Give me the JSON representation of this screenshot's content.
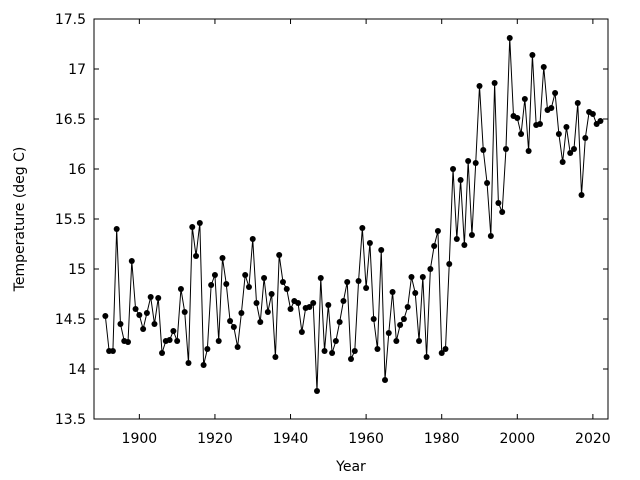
{
  "chart_data": {
    "type": "line",
    "title": "",
    "xlabel": "Year",
    "ylabel": "Temperature (deg C)",
    "xlim": [
      1888,
      2024
    ],
    "ylim": [
      13.5,
      17.5
    ],
    "grid": false,
    "legend": "none",
    "marker": "circle",
    "color": "#000000",
    "xticks": [
      1900,
      1920,
      1940,
      1960,
      1980,
      2000,
      2020
    ],
    "xtick_labels": [
      "1900",
      "1920",
      "1940",
      "1960",
      "1980",
      "2000",
      "2020"
    ],
    "yticks": [
      13.5,
      14,
      14.5,
      15,
      15.5,
      16,
      16.5,
      17,
      17.5
    ],
    "ytick_labels": [
      "13.5",
      "14",
      "14.5",
      "15",
      "15.5",
      "16",
      "16.5",
      "17",
      "17.5"
    ],
    "x": [
      1891,
      1892,
      1893,
      1894,
      1895,
      1896,
      1897,
      1898,
      1899,
      1900,
      1901,
      1902,
      1903,
      1904,
      1905,
      1906,
      1907,
      1908,
      1909,
      1910,
      1911,
      1912,
      1913,
      1914,
      1915,
      1916,
      1917,
      1918,
      1919,
      1920,
      1921,
      1922,
      1923,
      1924,
      1925,
      1926,
      1927,
      1928,
      1929,
      1930,
      1931,
      1932,
      1933,
      1934,
      1935,
      1936,
      1937,
      1938,
      1939,
      1940,
      1941,
      1942,
      1943,
      1944,
      1945,
      1946,
      1947,
      1948,
      1949,
      1950,
      1951,
      1952,
      1953,
      1954,
      1955,
      1956,
      1957,
      1958,
      1959,
      1960,
      1961,
      1962,
      1963,
      1964,
      1965,
      1966,
      1967,
      1968,
      1969,
      1970,
      1971,
      1972,
      1973,
      1974,
      1975,
      1976,
      1977,
      1978,
      1979,
      1980,
      1981,
      1982,
      1983,
      1984,
      1985,
      1986,
      1987,
      1988,
      1989,
      1990,
      1991,
      1992,
      1993,
      1994,
      1995,
      1996,
      1997,
      1998,
      1999,
      2000,
      2001,
      2002,
      2003,
      2004,
      2005,
      2006,
      2007,
      2008,
      2009,
      2010,
      2011,
      2012,
      2013,
      2014,
      2015,
      2016,
      2017,
      2018,
      2019,
      2020,
      2021,
      2022
    ],
    "y": [
      14.53,
      14.18,
      14.18,
      15.4,
      14.45,
      14.28,
      14.27,
      15.08,
      14.6,
      14.54,
      14.4,
      14.56,
      14.72,
      14.45,
      14.71,
      14.16,
      14.28,
      14.29,
      14.38,
      14.28,
      14.8,
      14.57,
      14.06,
      15.42,
      15.13,
      15.46,
      14.04,
      14.2,
      14.84,
      14.94,
      14.28,
      15.11,
      14.85,
      14.48,
      14.42,
      14.22,
      14.56,
      14.94,
      14.82,
      15.3,
      14.66,
      14.47,
      14.91,
      14.57,
      14.75,
      14.12,
      15.14,
      14.87,
      14.8,
      14.6,
      14.68,
      14.66,
      14.37,
      14.61,
      14.62,
      14.66,
      13.78,
      14.91,
      14.18,
      14.64,
      14.16,
      14.28,
      14.47,
      14.68,
      14.87,
      14.1,
      14.18,
      14.88,
      15.41,
      14.81,
      15.26,
      14.5,
      14.2,
      15.19,
      13.89,
      14.36,
      14.77,
      14.28,
      14.44,
      14.5,
      14.62,
      14.92,
      14.76,
      14.28,
      14.92,
      14.12,
      15.0,
      15.23,
      15.38,
      14.16,
      14.2,
      15.05,
      16.0,
      15.3,
      15.89,
      15.24,
      16.08,
      15.34,
      16.06,
      16.83,
      16.19,
      15.86,
      15.33,
      16.86,
      15.66,
      15.57,
      16.2,
      17.31,
      16.53,
      16.51,
      16.35,
      16.7,
      16.18,
      17.14,
      16.44,
      16.45,
      17.02,
      16.59,
      16.61,
      16.76,
      16.35,
      16.07,
      16.42,
      16.16,
      16.2,
      16.66,
      15.74,
      16.31,
      16.57,
      16.55,
      16.45,
      16.48
    ]
  }
}
